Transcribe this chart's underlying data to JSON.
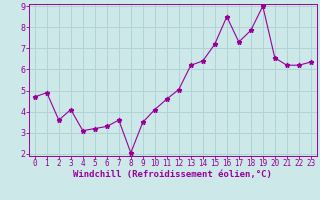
{
  "x": [
    0,
    1,
    2,
    3,
    4,
    5,
    6,
    7,
    8,
    9,
    10,
    11,
    12,
    13,
    14,
    15,
    16,
    17,
    18,
    19,
    20,
    21,
    22,
    23
  ],
  "y": [
    4.7,
    4.9,
    3.6,
    4.1,
    3.1,
    3.2,
    3.3,
    3.6,
    2.05,
    3.5,
    4.1,
    4.6,
    5.05,
    6.2,
    6.4,
    7.2,
    8.5,
    7.3,
    7.85,
    9.0,
    6.55,
    6.2,
    6.2,
    6.35
  ],
  "line_color": "#990099",
  "marker": "*",
  "marker_size": 3.5,
  "bg_color": "#cce8e8",
  "grid_color": "#b0d4d4",
  "xlabel": "Windchill (Refroidissement éolien,°C)",
  "xlabel_color": "#990099",
  "tick_color": "#990099",
  "ylim": [
    2,
    9
  ],
  "xlim": [
    -0.5,
    23.5
  ],
  "yticks": [
    2,
    3,
    4,
    5,
    6,
    7,
    8,
    9
  ],
  "xticks": [
    0,
    1,
    2,
    3,
    4,
    5,
    6,
    7,
    8,
    9,
    10,
    11,
    12,
    13,
    14,
    15,
    16,
    17,
    18,
    19,
    20,
    21,
    22,
    23
  ],
  "tick_fontsize": 5.5,
  "xlabel_fontsize": 6.5,
  "ylabel_fontsize": 6
}
